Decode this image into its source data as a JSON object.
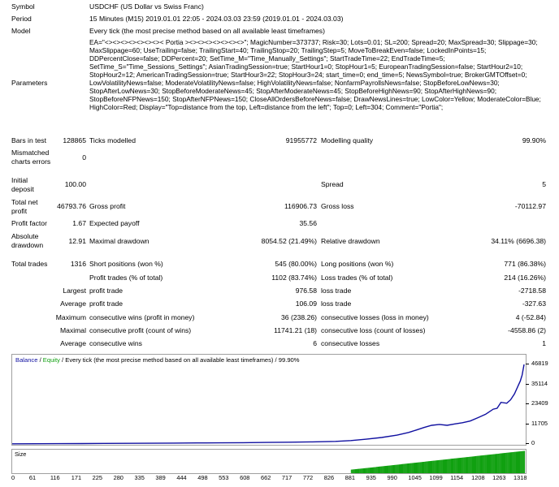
{
  "report": {
    "symbol": {
      "label": "Symbol",
      "value": "USDCHF (US Dollar vs Swiss Franc)"
    },
    "period": {
      "label": "Period",
      "value": "15 Minutes (M15) 2019.01.01 22:05 - 2024.03.03 23:59 (2019.01.01 - 2024.03.03)"
    },
    "model": {
      "label": "Model",
      "value": "Every tick (the most precise method based on all available least timeframes)"
    },
    "parameters": {
      "label": "Parameters",
      "value": "EA=\"<><><><><><><>< Portia ><><><><><><><>\"; MagicNumber=373737; Risk=30; Lots=0.01; SL=200; Spread=20; MaxSpread=30; Slippage=30; MaxSlippage=60; UseTrailing=false; TrailingStart=40; TrailingStop=20; TrailingStep=5; MoveToBreakEven=false; LockedInPoints=15; DDPercentClose=false; DDPercent=20; SetTime_M=\"Time_Manually_Settings\"; StartTradeTime=22; EndTradeTime=5; SetTime_S=\"Time_Sessions_Settings\"; AsianTradingSession=true; StartHour1=0; StopHour1=5; EuropeanTradingSession=false; StartHour2=10; StopHour2=12; AmericanTradingSession=true; StartHour3=22; StopHour3=24; start_time=0; end_time=5; NewsSymbol=true; BrokerGMTOffset=0; LowVolatilityNews=false; ModerateVolatilityNews=false; HighVolatilityNews=false; NonfarmPayrollsNews=false; StopBeforeLowNews=30; StopAfterLowNews=30; StopBeforeModerateNews=45; StopAfterModerateNews=45; StopBeforeHighNews=90; StopAfterHighNews=90; StopBeforeNFPNews=150; StopAfterNFPNews=150; CloseAllOrdersBeforeNews=false; DrawNewsLines=true; LowColor=Yellow; ModerateColor=Blue; HighColor=Red; Display=\"Top=distance from the top, Left=distance from the left\"; Top=0; Left=304; Comment=\"Portia\";"
    },
    "bars_in_test": {
      "label": "Bars in test",
      "value": "128865"
    },
    "ticks_modelled": {
      "label": "Ticks modelled",
      "value": "91955772"
    },
    "modelling_quality": {
      "label": "Modelling quality",
      "value": "99.90%"
    },
    "mismatched_errors": {
      "label1": "Mismatched",
      "label2": "charts errors",
      "value": "0"
    },
    "initial_deposit": {
      "label1": "Initial",
      "label2": "deposit",
      "value": "100.00"
    },
    "spread": {
      "label": "Spread",
      "value": "5"
    },
    "total_net_profit": {
      "label1": "Total net",
      "label2": "profit",
      "value": "46793.76"
    },
    "gross_profit": {
      "label": "Gross profit",
      "value": "116906.73"
    },
    "gross_loss": {
      "label": "Gross loss",
      "value": "-70112.97"
    },
    "profit_factor": {
      "label": "Profit factor",
      "value": "1.67"
    },
    "expected_payoff": {
      "label": "Expected payoff",
      "value": "35.56"
    },
    "absolute_drawdown": {
      "label1": "Absolute",
      "label2": "drawdown",
      "value": "12.91"
    },
    "maximal_drawdown": {
      "label": "Maximal drawdown",
      "value": "8054.52 (21.49%)"
    },
    "relative_drawdown": {
      "label": "Relative drawdown",
      "value": "34.11% (6696.38)"
    },
    "total_trades": {
      "label": "Total trades",
      "value": "1316"
    },
    "short_positions": {
      "label": "Short positions (won %)",
      "value": "545 (80.00%)"
    },
    "long_positions": {
      "label": "Long positions (won %)",
      "value": "771 (86.38%)"
    },
    "profit_trades": {
      "label": "Profit trades (% of total)",
      "value": "1102 (83.74%)"
    },
    "loss_trades": {
      "label": "Loss trades (% of total)",
      "value": "214 (16.26%)"
    },
    "largest": {
      "label": "Largest",
      "profit_label": "profit trade",
      "profit_value": "976.58",
      "loss_label": "loss trade",
      "loss_value": "-2718.58"
    },
    "average": {
      "label": "Average",
      "profit_label": "profit trade",
      "profit_value": "106.09",
      "loss_label": "loss trade",
      "loss_value": "-327.63"
    },
    "maximum": {
      "label": "Maximum",
      "wins_label": "consecutive wins (profit in money)",
      "wins_value": "36 (238.26)",
      "losses_label": "consecutive losses (loss in money)",
      "losses_value": "4 (-52.84)"
    },
    "maximal": {
      "label": "Maximal",
      "profit_label": "consecutive profit (count of wins)",
      "profit_value": "11741.21 (18)",
      "loss_label": "consecutive loss (count of losses)",
      "loss_value": "-4558.86 (2)"
    },
    "average_consecutive": {
      "label": "Average",
      "wins_label": "consecutive wins",
      "wins_value": "6",
      "losses_label": "consecutive losses",
      "losses_value": "1"
    }
  },
  "colors": {
    "balance": "#1010a0",
    "equity": "#10a010",
    "volume": "#10a010"
  },
  "chart_data": {
    "type": "line",
    "legend": {
      "balance": "Balance",
      "sep1": " / ",
      "equity": "Equity",
      "sep2": " / ",
      "rest": "Every tick (the most precise method based on all available least timeframes) / 99.90%"
    },
    "y_ticks": [
      "46819",
      "35114",
      "23409",
      "11705",
      "0"
    ],
    "ylim": [
      0,
      46819
    ],
    "size_label": "Size",
    "x_ticks": [
      "0",
      "61",
      "116",
      "171",
      "225",
      "280",
      "335",
      "389",
      "444",
      "498",
      "553",
      "608",
      "662",
      "717",
      "772",
      "826",
      "881",
      "935",
      "990",
      "1045",
      "1099",
      "1154",
      "1208",
      "1263",
      "1318"
    ],
    "xlim": [
      0,
      1330
    ],
    "series": [
      {
        "name": "Balance",
        "x": [
          0,
          60,
          120,
          180,
          240,
          300,
          360,
          420,
          480,
          540,
          600,
          660,
          720,
          780,
          840,
          880,
          920,
          960,
          1000,
          1030,
          1050,
          1070,
          1090,
          1110,
          1130,
          1150,
          1170,
          1190,
          1210,
          1230,
          1250,
          1260,
          1270,
          1285,
          1295,
          1305,
          1315,
          1320,
          1325,
          1330
        ],
        "values": [
          100,
          150,
          200,
          260,
          320,
          380,
          450,
          520,
          600,
          680,
          780,
          900,
          1050,
          1250,
          1550,
          2000,
          2800,
          3800,
          5200,
          6800,
          8200,
          9700,
          11000,
          11500,
          11000,
          11800,
          12500,
          13500,
          15500,
          17500,
          20500,
          21000,
          24500,
          24000,
          26000,
          29500,
          34500,
          37000,
          40500,
          46819
        ]
      }
    ],
    "volume": {
      "start": 880,
      "end": 1330,
      "min": 0.15,
      "max": 0.95
    }
  }
}
